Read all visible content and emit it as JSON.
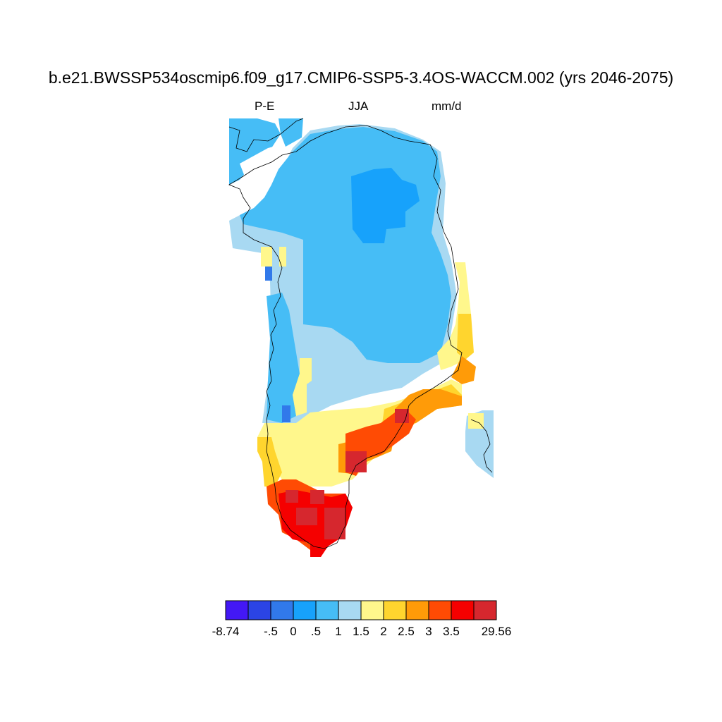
{
  "title": "b.e21.BWSSP534oscmip6.f09_g17.CMIP6-SSP5-3.4OS-WACCM.002 (yrs 2046-2075)",
  "left_label": "P-E",
  "center_label": "JJA",
  "right_label": "mm/d",
  "colorbar": {
    "colors": [
      "#4318f5",
      "#2b44e5",
      "#3179ea",
      "#17a2fb",
      "#46bdf6",
      "#a8d9f2",
      "#fff78c",
      "#ffd52e",
      "#ff9b08",
      "#ff4b04",
      "#f50000",
      "#d6272e"
    ],
    "labels": [
      "-8.74",
      "-.5",
      "0",
      ".5",
      "1",
      "1.5",
      "2",
      "2.5",
      "3",
      "3.5",
      "29.56"
    ]
  }
}
